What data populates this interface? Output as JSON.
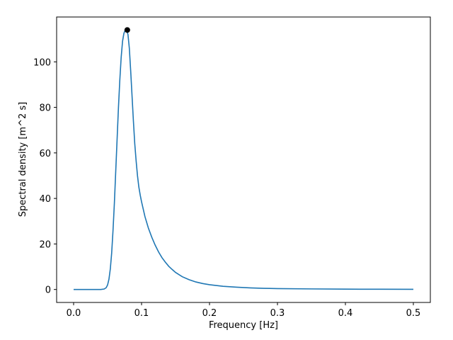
{
  "chart_data": {
    "type": "line",
    "title": "",
    "xlabel": "Frequency [Hz]",
    "ylabel": "Spectral density [m^2 s]",
    "xlim": [
      -0.025,
      0.525
    ],
    "ylim": [
      -5.7,
      119.7
    ],
    "xticks": [
      0.0,
      0.1,
      0.2,
      0.3,
      0.4,
      0.5
    ],
    "xtick_labels": [
      "0.0",
      "0.1",
      "0.2",
      "0.3",
      "0.4",
      "0.5"
    ],
    "yticks": [
      0,
      20,
      40,
      60,
      80,
      100
    ],
    "ytick_labels": [
      "0",
      "20",
      "40",
      "60",
      "80",
      "100"
    ],
    "grid": false,
    "line_color": "#1f77b4",
    "marker_color": "#000000",
    "series": [
      {
        "x": [
          0.0,
          0.02,
          0.04,
          0.045,
          0.048,
          0.05,
          0.052,
          0.054,
          0.056,
          0.058,
          0.06,
          0.062,
          0.064,
          0.066,
          0.068,
          0.07,
          0.072,
          0.074,
          0.076,
          0.078,
          0.08,
          0.082,
          0.084,
          0.086,
          0.088,
          0.09,
          0.092,
          0.094,
          0.096,
          0.098,
          0.1,
          0.105,
          0.11,
          0.115,
          0.12,
          0.125,
          0.13,
          0.135,
          0.14,
          0.145,
          0.15,
          0.16,
          0.17,
          0.18,
          0.19,
          0.2,
          0.22,
          0.24,
          0.26,
          0.28,
          0.3,
          0.35,
          0.4,
          0.45,
          0.5
        ],
        "y": [
          0.0,
          0.0,
          0.0,
          0.2,
          0.8,
          2.0,
          4.5,
          9.0,
          16.0,
          26.0,
          38.0,
          52.0,
          66.0,
          80.0,
          92.0,
          102.0,
          109.0,
          112.5,
          114.0,
          114.2,
          112.0,
          106.0,
          96.0,
          85.0,
          74.0,
          64.0,
          56.5,
          50.0,
          45.0,
          41.5,
          38.5,
          32.0,
          27.0,
          23.0,
          19.5,
          16.5,
          14.0,
          12.0,
          10.2,
          8.8,
          7.5,
          5.6,
          4.3,
          3.3,
          2.6,
          2.1,
          1.4,
          1.0,
          0.7,
          0.5,
          0.4,
          0.25,
          0.15,
          0.1,
          0.07
        ]
      }
    ],
    "peak": {
      "x": 0.079,
      "y": 114.0
    }
  }
}
